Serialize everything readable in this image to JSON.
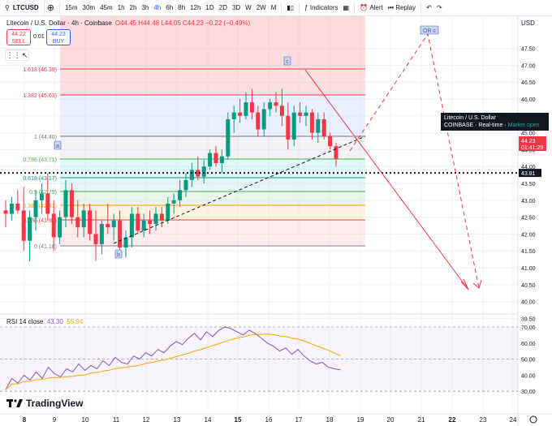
{
  "toolbar": {
    "symbol": "LTCUSD",
    "intervals": [
      "15m",
      "30m",
      "45m",
      "1h",
      "2h",
      "3h",
      "4h",
      "6h",
      "8h",
      "12h",
      "1D",
      "2D",
      "3D",
      "W",
      "2W",
      "M"
    ],
    "active_interval": "4h",
    "indicators_label": "Indicators",
    "alert_label": "Alert",
    "replay_label": "Replay"
  },
  "legend": {
    "title": "Litecoin / U.S. Dollar · 4h · Coinbase",
    "ohlc": "O44.45 H44.48 L44.05 C44.23 −0.22 (−0.49%)"
  },
  "trade": {
    "sell_price": "44.22",
    "sell_label": "SELL",
    "buy_price": "44.23",
    "buy_label": "BUY",
    "spread": "0.01"
  },
  "price_axis": {
    "currency": "USD",
    "labels": [
      "47.50",
      "47.00",
      "46.50",
      "46.00",
      "45.50",
      "45.00",
      "44.50",
      "44.00",
      "43.50",
      "43.00",
      "42.50",
      "42.00",
      "41.50",
      "41.00",
      "40.50",
      "40.00",
      "39.50"
    ],
    "current_price": "44.23",
    "countdown": "01:41:29",
    "dotted_level": "43.81"
  },
  "time_axis": {
    "labels": [
      "8",
      "9",
      "10",
      "11",
      "12",
      "13",
      "14",
      "15",
      "16",
      "17",
      "18",
      "19",
      "20",
      "21",
      "22",
      "23",
      "24"
    ]
  },
  "fib": {
    "levels": [
      {
        "label": "1.618 (46.39)",
        "color": "#f23645"
      },
      {
        "label": "1.382 (45.63)",
        "color": "#f23645"
      },
      {
        "label": "1 (44.40)",
        "color": "#787b86"
      },
      {
        "label": "0.786 (43.71)",
        "color": "#4caf50"
      },
      {
        "label": "0.618 (43.17)",
        "color": "#089981"
      },
      {
        "label": "0.5 (42.79)",
        "color": "#4caf50"
      },
      {
        "label": "0.382 (42.41)",
        "color": "#ff9800"
      },
      {
        "label": "0.236 (41.94)",
        "color": "#f23645"
      },
      {
        "label": "0 (41.18)",
        "color": "#787b86"
      }
    ]
  },
  "points": {
    "a": "a",
    "b": "b",
    "c": "c",
    "orc": "OR c"
  },
  "tooltip": {
    "title": "Litecoin / U.S. Dollar",
    "exchange": "COINBASE",
    "feed": "Real-time",
    "status": "Market open"
  },
  "rsi": {
    "title": "RSI 14 close",
    "value": "43.30",
    "ma_value": "55.94",
    "labels": [
      "70.00",
      "60.00",
      "50.00",
      "40.00",
      "30.00"
    ]
  },
  "brand": "TradingView",
  "colors": {
    "up": "#089981",
    "down": "#f23645",
    "accent": "#2962ff"
  }
}
